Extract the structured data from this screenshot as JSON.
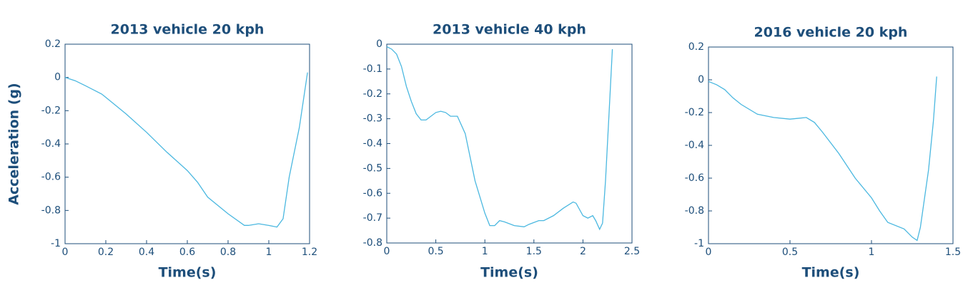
{
  "chart_data": [
    {
      "type": "line",
      "title": "2013 vehicle 20 kph",
      "x_label": "Time(s)",
      "y_label": "Acceleration (g)",
      "xlim": [
        0,
        1.2
      ],
      "ylim": [
        -1,
        0.2
      ],
      "xticks": [
        0,
        0.2,
        0.4,
        0.6,
        0.8,
        1,
        1.2
      ],
      "yticks": [
        -1,
        -0.8,
        -0.6,
        -0.4,
        -0.2,
        0,
        0.2
      ],
      "color": "#4bb8e0",
      "x": [
        0,
        0.05,
        0.1,
        0.18,
        0.2,
        0.3,
        0.4,
        0.5,
        0.6,
        0.65,
        0.7,
        0.8,
        0.88,
        0.9,
        0.95,
        1.0,
        1.04,
        1.07,
        1.1,
        1.15,
        1.19
      ],
      "values": [
        0,
        -0.02,
        -0.05,
        -0.1,
        -0.12,
        -0.22,
        -0.33,
        -0.45,
        -0.56,
        -0.63,
        -0.72,
        -0.82,
        -0.89,
        -0.89,
        -0.88,
        -0.89,
        -0.9,
        -0.85,
        -0.6,
        -0.3,
        0.03
      ]
    },
    {
      "type": "line",
      "title": "2013 vehicle 40 kph",
      "x_label": "Time(s)",
      "xlim": [
        0,
        2.5
      ],
      "ylim": [
        -0.8,
        0
      ],
      "xticks": [
        0,
        0.5,
        1,
        1.5,
        2,
        2.5
      ],
      "yticks": [
        -0.8,
        -0.7,
        -0.6,
        -0.5,
        -0.4,
        -0.3,
        -0.2,
        -0.1,
        0
      ],
      "color": "#4bb8e0",
      "x": [
        0,
        0.05,
        0.1,
        0.15,
        0.2,
        0.25,
        0.3,
        0.35,
        0.4,
        0.5,
        0.55,
        0.6,
        0.65,
        0.72,
        0.8,
        0.9,
        1.0,
        1.05,
        1.1,
        1.15,
        1.2,
        1.3,
        1.4,
        1.45,
        1.55,
        1.6,
        1.7,
        1.8,
        1.9,
        1.93,
        2.0,
        2.05,
        2.1,
        2.13,
        2.17,
        2.2,
        2.23,
        2.27,
        2.3
      ],
      "values": [
        -0.01,
        -0.02,
        -0.04,
        -0.09,
        -0.17,
        -0.23,
        -0.28,
        -0.305,
        -0.305,
        -0.275,
        -0.27,
        -0.275,
        -0.29,
        -0.29,
        -0.36,
        -0.55,
        -0.68,
        -0.73,
        -0.73,
        -0.71,
        -0.715,
        -0.73,
        -0.735,
        -0.725,
        -0.71,
        -0.71,
        -0.69,
        -0.66,
        -0.635,
        -0.64,
        -0.69,
        -0.7,
        -0.69,
        -0.71,
        -0.745,
        -0.72,
        -0.55,
        -0.25,
        -0.02
      ]
    },
    {
      "type": "line",
      "title": "2016 vehicle 20 kph",
      "x_label": "Time(s)",
      "xlim": [
        0,
        1.5
      ],
      "ylim": [
        -1,
        0.2
      ],
      "xticks": [
        0,
        0.5,
        1,
        1.5
      ],
      "yticks": [
        -1,
        -0.8,
        -0.6,
        -0.4,
        -0.2,
        0,
        0.2
      ],
      "color": "#4bb8e0",
      "x": [
        0,
        0.05,
        0.1,
        0.15,
        0.2,
        0.3,
        0.4,
        0.5,
        0.55,
        0.6,
        0.65,
        0.7,
        0.8,
        0.9,
        1.0,
        1.05,
        1.1,
        1.2,
        1.25,
        1.28,
        1.3,
        1.35,
        1.38,
        1.4
      ],
      "values": [
        -0.01,
        -0.03,
        -0.06,
        -0.11,
        -0.15,
        -0.21,
        -0.23,
        -0.24,
        -0.235,
        -0.23,
        -0.26,
        -0.32,
        -0.45,
        -0.6,
        -0.72,
        -0.8,
        -0.87,
        -0.91,
        -0.96,
        -0.98,
        -0.9,
        -0.55,
        -0.25,
        0.02
      ]
    }
  ]
}
